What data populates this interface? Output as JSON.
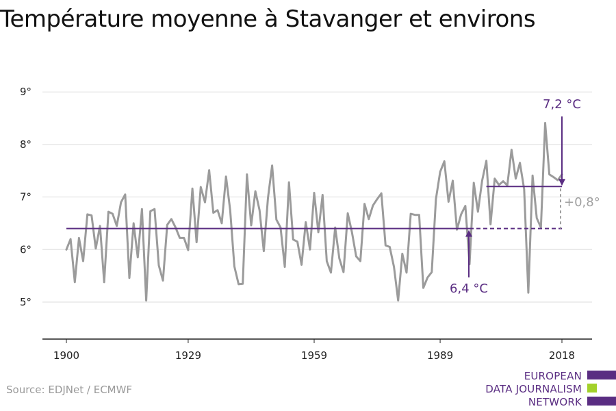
{
  "title": "Température moyenne à Stavanger et environs",
  "source": "Source: EDJNet / ECMWF",
  "logo": {
    "lines": [
      "EUROPEAN",
      "DATA JOURNALISM",
      "NETWORK"
    ],
    "colors": {
      "purple": "#5a2d82",
      "green": "#a3d12a"
    }
  },
  "colors": {
    "series": "#9b9b9b",
    "baseline": "#5a2d82",
    "recent": "#5a2d82",
    "diff": "#a0a0a0",
    "grid": "#dddddd",
    "axis": "#222222"
  },
  "chart_data": {
    "type": "line",
    "title": "Température moyenne à Stavanger et environs",
    "xlabel": "",
    "ylabel": "",
    "x_ticks": [
      1900,
      1929,
      1959,
      1989,
      2018
    ],
    "y_ticks": [
      5,
      6,
      7,
      8,
      9
    ],
    "y_tick_labels": [
      "5°",
      "6°",
      "7°",
      "8°",
      "9°"
    ],
    "xlim": [
      1900,
      2018
    ],
    "ylim": [
      4.3,
      9
    ],
    "grid": true,
    "series": [
      {
        "x": [
          1900,
          1901,
          1902,
          1903,
          1904,
          1905,
          1906,
          1907,
          1908,
          1909,
          1910,
          1911,
          1912,
          1913,
          1914,
          1915,
          1916,
          1917,
          1918,
          1919,
          1920,
          1921,
          1922,
          1923,
          1924,
          1925,
          1926,
          1927,
          1928,
          1929,
          1930,
          1931,
          1932,
          1933,
          1934,
          1935,
          1936,
          1937,
          1938,
          1939,
          1940,
          1941,
          1942,
          1943,
          1944,
          1945,
          1946,
          1947,
          1948,
          1949,
          1950,
          1951,
          1952,
          1953,
          1954,
          1955,
          1956,
          1957,
          1958,
          1959,
          1960,
          1961,
          1962,
          1963,
          1964,
          1965,
          1966,
          1967,
          1968,
          1969,
          1970,
          1971,
          1972,
          1973,
          1974,
          1975,
          1976,
          1977,
          1978,
          1979,
          1980,
          1981,
          1982,
          1983,
          1984,
          1985,
          1986,
          1987,
          1988,
          1989,
          1990,
          1991,
          1992,
          1993,
          1994,
          1995,
          1996,
          1997,
          1998,
          1999,
          2000,
          2001,
          2002,
          2003,
          2004,
          2005,
          2006,
          2007,
          2008,
          2009,
          2010,
          2011,
          2012,
          2013,
          2014,
          2015,
          2016,
          2017,
          2018
        ],
        "y": [
          6.0,
          6.2,
          5.38,
          6.22,
          5.78,
          6.67,
          6.65,
          6.02,
          6.45,
          5.38,
          6.72,
          6.68,
          6.45,
          6.9,
          7.05,
          5.46,
          6.5,
          5.85,
          6.77,
          5.03,
          6.73,
          6.77,
          5.7,
          5.41,
          6.47,
          6.58,
          6.42,
          6.22,
          6.22,
          5.99,
          7.16,
          6.14,
          7.19,
          6.9,
          7.51,
          6.7,
          6.75,
          6.5,
          7.39,
          6.75,
          5.68,
          5.34,
          5.35,
          7.43,
          6.46,
          7.11,
          6.75,
          5.97,
          6.98,
          7.6,
          6.57,
          6.42,
          5.67,
          7.28,
          6.19,
          6.15,
          5.71,
          6.52,
          6.0,
          7.08,
          6.33,
          7.04,
          5.78,
          5.56,
          6.42,
          5.83,
          5.57,
          6.69,
          6.33,
          5.87,
          5.78,
          6.87,
          6.58,
          6.84,
          6.96,
          7.07,
          6.08,
          6.05,
          5.67,
          5.03,
          5.92,
          5.56,
          6.68,
          6.66,
          6.66,
          5.27,
          5.47,
          5.57,
          6.96,
          7.48,
          7.68,
          6.91,
          7.31,
          6.38,
          6.67,
          6.83,
          5.72,
          7.27,
          6.72,
          7.31,
          7.69,
          6.48,
          7.35,
          7.23,
          7.3,
          7.22,
          7.9,
          7.35,
          7.65,
          7.15,
          5.18,
          7.41,
          6.6,
          6.42,
          8.41,
          7.43,
          7.38,
          7.32,
          7.43
        ]
      }
    ],
    "annotations": {
      "baseline": {
        "value": 6.4,
        "label": "6,4 °C",
        "from_year": 1900,
        "to_year": 2018
      },
      "recent": {
        "value": 7.2,
        "label": "7,2 °C",
        "from_year": 2000,
        "to_year": 2018
      },
      "difference": {
        "label": "+0,8°"
      }
    }
  }
}
